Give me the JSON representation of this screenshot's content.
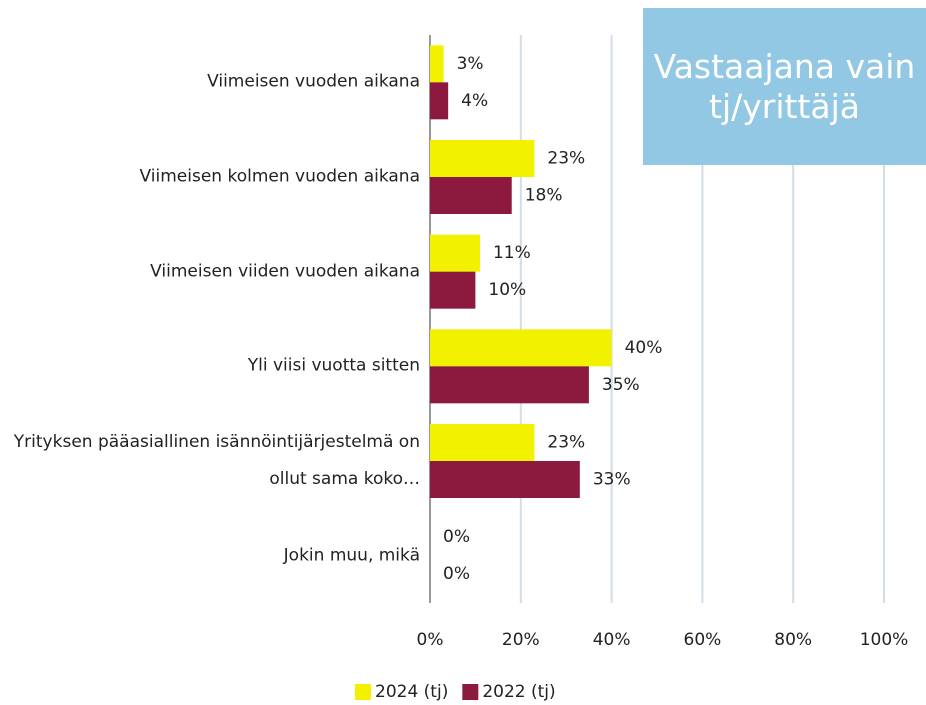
{
  "chart_data": {
    "type": "bar",
    "orientation": "horizontal",
    "annotation": "Vastaajana vain tj/yrittäjä",
    "categories": [
      "Viimeisen vuoden aikana",
      "Viimeisen kolmen vuoden aikana",
      "Viimeisen viiden vuoden aikana",
      "Yli viisi vuotta sitten",
      "Yrityksen pääasiallinen isännöintijärjestelmä on ollut sama koko…",
      "Jokin muu, mikä"
    ],
    "series": [
      {
        "name": "2024 (tj)",
        "color": "#f2f200",
        "values": [
          3,
          23,
          11,
          40,
          23,
          0
        ],
        "value_labels": [
          "3%",
          "23%",
          "11%",
          "40%",
          "23%",
          "0%"
        ]
      },
      {
        "name": "2022 (tj)",
        "color": "#8c1a3e",
        "values": [
          4,
          18,
          10,
          35,
          33,
          0
        ],
        "value_labels": [
          "4%",
          "18%",
          "10%",
          "35%",
          "33%",
          "0%"
        ]
      }
    ],
    "xlim": [
      0,
      100
    ],
    "xticks": [
      {
        "value": 0,
        "label": "0%"
      },
      {
        "value": 20,
        "label": "20%"
      },
      {
        "value": 40,
        "label": "40%"
      },
      {
        "value": 60,
        "label": "60%"
      },
      {
        "value": 80,
        "label": "80%"
      },
      {
        "value": 100,
        "label": "100%"
      }
    ],
    "grid": true,
    "legend": "bottom"
  }
}
